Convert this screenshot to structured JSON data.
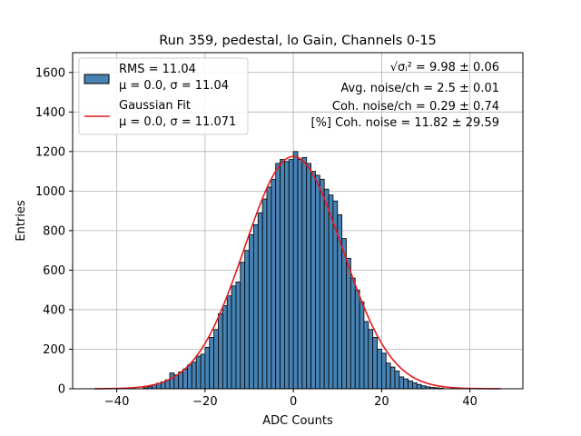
{
  "chart_data": {
    "type": "bar",
    "title": "Run 359, pedestal, lo Gain, Channels 0-15",
    "xlabel": "ADC Counts",
    "ylabel": "Entries",
    "xlim": [
      -50,
      52
    ],
    "ylim": [
      0,
      1700
    ],
    "xticks": [
      -40,
      -20,
      0,
      20,
      40
    ],
    "yticks": [
      0,
      200,
      400,
      600,
      800,
      1000,
      1200,
      1400,
      1600
    ],
    "xtick_labels": [
      "−40",
      "−20",
      "0",
      "20",
      "40"
    ],
    "ytick_labels": [
      "0",
      "200",
      "400",
      "600",
      "800",
      "1000",
      "1200",
      "1400",
      "1600"
    ],
    "grid": true,
    "bin_width": 1,
    "histogram": {
      "name": "RMS = 11.04",
      "name_line2": "μ = 0.0, σ = 11.04",
      "color": "#4682b4",
      "edge_color": "#000000",
      "bin_starts": [
        -34,
        -33,
        -32,
        -31,
        -30,
        -29,
        -28,
        -27,
        -26,
        -25,
        -24,
        -23,
        -22,
        -21,
        -20,
        -19,
        -18,
        -17,
        -16,
        -15,
        -14,
        -13,
        -12,
        -11,
        -10,
        -9,
        -8,
        -7,
        -6,
        -5,
        -4,
        -3,
        -2,
        -1,
        0,
        1,
        2,
        3,
        4,
        5,
        6,
        7,
        8,
        9,
        10,
        11,
        12,
        13,
        14,
        15,
        16,
        17,
        18,
        19,
        20,
        21,
        22,
        23,
        24,
        25,
        26,
        27,
        28,
        29,
        30,
        31,
        32,
        33
      ],
      "values": [
        5,
        10,
        20,
        28,
        35,
        45,
        80,
        70,
        85,
        100,
        120,
        135,
        165,
        175,
        210,
        260,
        300,
        380,
        420,
        470,
        520,
        540,
        640,
        700,
        780,
        830,
        890,
        960,
        1020,
        1060,
        1140,
        1160,
        1150,
        1160,
        1200,
        1160,
        1170,
        1140,
        1100,
        1080,
        1060,
        1010,
        980,
        950,
        880,
        760,
        660,
        560,
        500,
        440,
        340,
        300,
        260,
        200,
        180,
        130,
        110,
        90,
        60,
        50,
        40,
        30,
        22,
        15,
        10,
        7,
        5,
        3
      ]
    },
    "fit": {
      "name": "Gaussian Fit",
      "name_line2": "μ = 0.0, σ = 11.071",
      "color": "#e41a1c",
      "mu": 0.0,
      "sigma": 11.071,
      "amplitude": 1175,
      "x_range": [
        -45,
        47
      ]
    },
    "annotations": [
      "√σᵢ² = 9.98 ± 0.06",
      "Avg. noise/ch = 2.5 ± 0.01",
      "Coh. noise/ch = 0.29 ± 0.74",
      "[%] Coh. noise = 11.82 ± 29.59"
    ],
    "legend_position": "top-left"
  }
}
